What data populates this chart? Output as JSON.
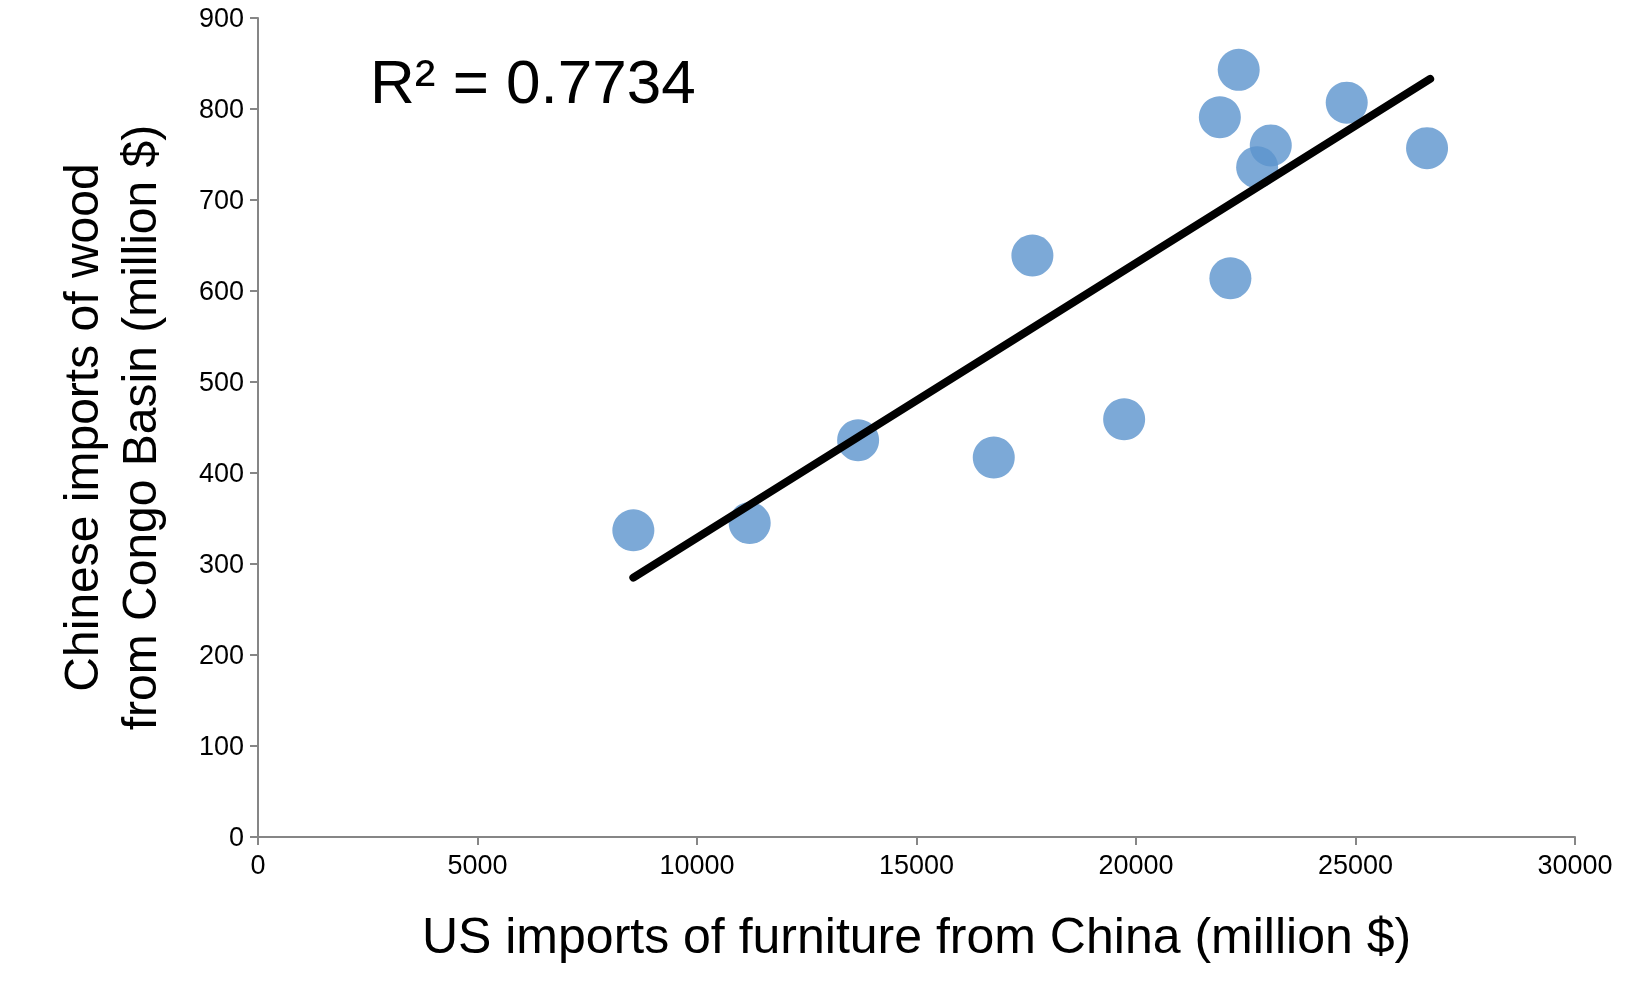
{
  "chart_data": {
    "type": "scatter",
    "xlabel": "US imports of furniture from China (million $)",
    "ylabel": "Chinese imports of wood\nfrom Congo Basin (million $)",
    "annotations": [
      "R² = 0.7734"
    ],
    "xlim": [
      0,
      30000
    ],
    "xticks": [
      0,
      5000,
      10000,
      15000,
      20000,
      25000,
      30000
    ],
    "ylim": [
      0,
      900
    ],
    "yticks": [
      0,
      100,
      200,
      300,
      400,
      500,
      600,
      700,
      800,
      900
    ],
    "grid": false,
    "marker": "circle",
    "series": [
      {
        "color": "#5b93cd",
        "x": [
          8550,
          11200,
          13670,
          16760,
          17640,
          19730,
          21910,
          22150,
          22340,
          23070,
          22760,
          24800,
          26630
        ],
        "values": [
          337,
          345,
          436,
          417,
          639,
          459,
          791,
          614,
          843,
          760,
          736,
          807,
          757
        ]
      },
      {
        "type": "line",
        "color": "#000000",
        "x": [
          8550,
          26700
        ],
        "values": [
          285,
          833
        ],
        "marker": "none",
        "line_style": "solid"
      }
    ]
  }
}
